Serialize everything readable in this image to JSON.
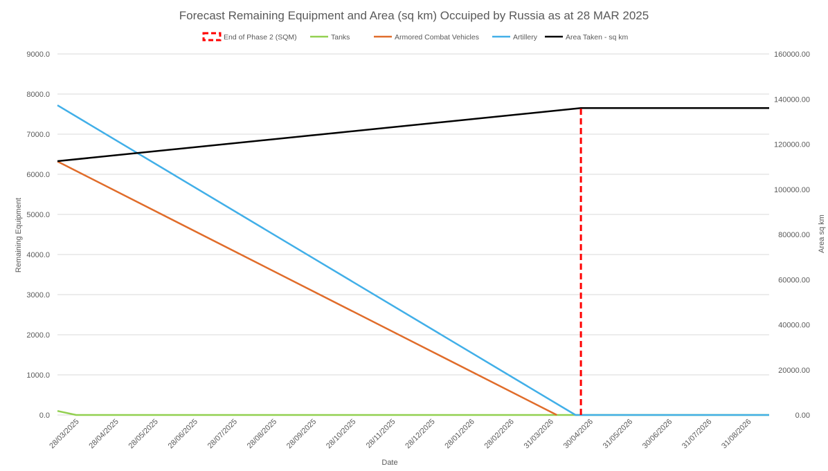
{
  "chart_data": {
    "type": "line",
    "title": "Forecast Remaining Equipment and Area (sq km) Occuiped by Russia as at 28 MAR 2025",
    "xlabel": "Date",
    "ylabel": "Remaining Equipment",
    "y2label": "Area sq km",
    "ylim": [
      0,
      9000
    ],
    "y2lim": [
      0,
      160000
    ],
    "y_ticks": [
      "0.0",
      "1000.0",
      "2000.0",
      "3000.0",
      "4000.0",
      "5000.0",
      "6000.0",
      "7000.0",
      "8000.0",
      "9000.0"
    ],
    "y2_ticks": [
      "0.00",
      "20000.00",
      "40000.00",
      "60000.00",
      "80000.00",
      "100000.00",
      "120000.00",
      "140000.00",
      "160000.00"
    ],
    "x_ticks": [
      "28/03/2025",
      "28/04/2025",
      "28/05/2025",
      "28/06/2025",
      "28/07/2025",
      "28/08/2025",
      "28/09/2025",
      "28/10/2025",
      "28/11/2025",
      "28/12/2025",
      "28/01/2026",
      "28/02/2026",
      "31/03/2026",
      "30/04/2026",
      "31/05/2026",
      "30/06/2026",
      "31/07/2026",
      "31/08/2026"
    ],
    "x_range_days": [
      0,
      533
    ],
    "legend_position": "top",
    "grid": true,
    "series": [
      {
        "name": "End of Phase 2 (SQM)",
        "axis": "left",
        "style": "dashed",
        "color": "#ff0000",
        "points": [
          [
            392,
            0
          ],
          [
            392,
            7650
          ]
        ]
      },
      {
        "name": "Tanks",
        "axis": "left",
        "style": "solid",
        "color": "#92d050",
        "points": [
          [
            0,
            100
          ],
          [
            14,
            0
          ],
          [
            533,
            0
          ]
        ]
      },
      {
        "name": "Armored Combat Vehicles",
        "axis": "left",
        "style": "solid",
        "color": "#e06c2a",
        "points": [
          [
            0,
            6320
          ],
          [
            374,
            0
          ]
        ]
      },
      {
        "name": "Artillery",
        "axis": "left",
        "style": "solid",
        "color": "#41afe8",
        "points": [
          [
            0,
            7720
          ],
          [
            388,
            0
          ],
          [
            533,
            0
          ]
        ]
      },
      {
        "name": "Area Taken - sq km",
        "axis": "right",
        "style": "solid",
        "color": "#000000",
        "points": [
          [
            0,
            112500
          ],
          [
            392,
            136000
          ],
          [
            533,
            136000
          ]
        ]
      }
    ]
  }
}
